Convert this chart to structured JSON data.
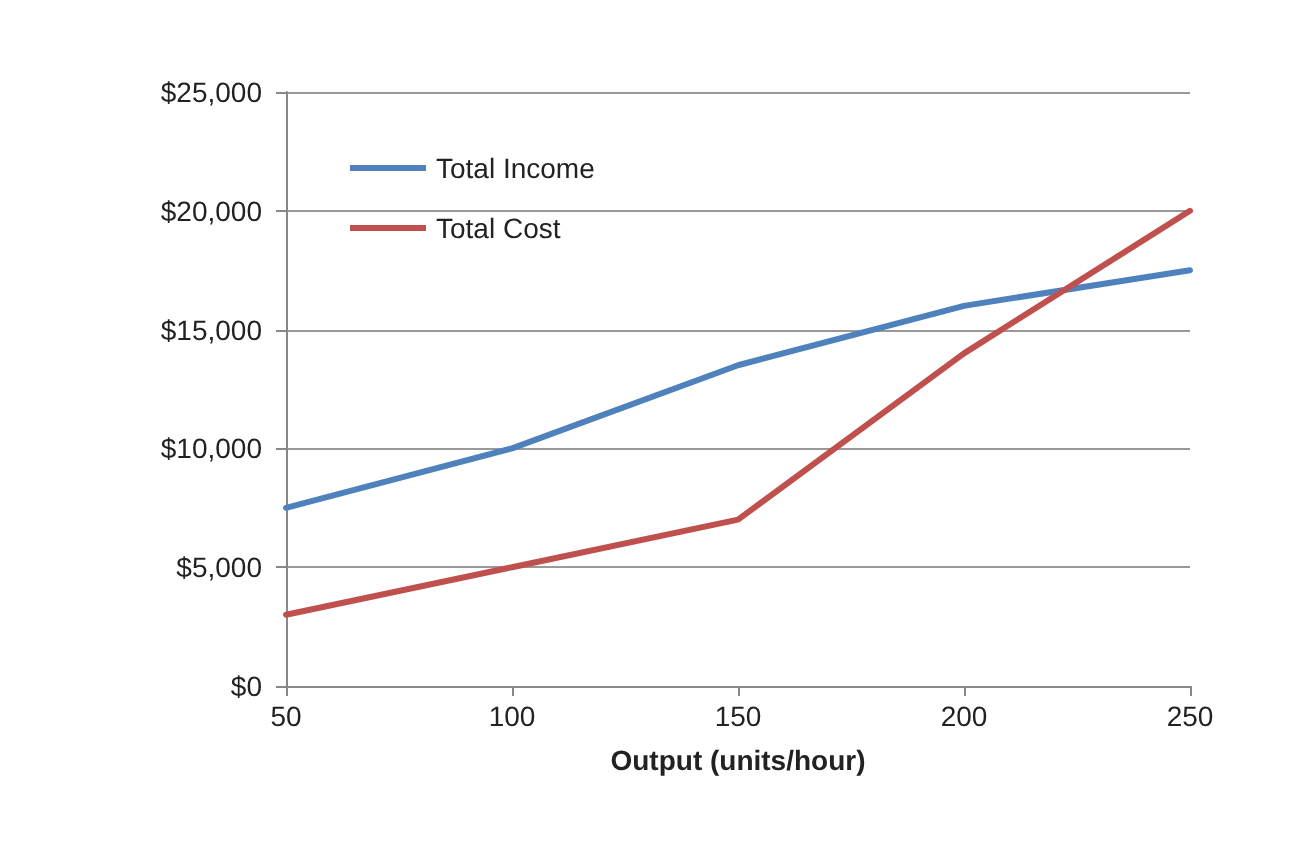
{
  "chart_data": {
    "type": "line",
    "xlabel": "Output (units/hour)",
    "x": [
      50,
      100,
      150,
      200,
      250
    ],
    "series": [
      {
        "name": "Total Income",
        "color": "#4f81bd",
        "values": [
          7500,
          10000,
          13500,
          16000,
          17500
        ]
      },
      {
        "name": "Total Cost",
        "color": "#c0504d",
        "values": [
          3000,
          5000,
          7000,
          14000,
          20000
        ]
      }
    ],
    "xlim": [
      50,
      250
    ],
    "xticks": [
      50,
      100,
      150,
      200,
      250
    ],
    "ylim": [
      0,
      25000
    ],
    "yticks": [
      {
        "value": 0,
        "label": "$0"
      },
      {
        "value": 5000,
        "label": "$5,000"
      },
      {
        "value": 10000,
        "label": "$10,000"
      },
      {
        "value": 15000,
        "label": "$15,000"
      },
      {
        "value": 20000,
        "label": "$20,000"
      },
      {
        "value": 25000,
        "label": "$25,000"
      }
    ],
    "grid": "y",
    "legend": "top left",
    "marker": "none",
    "line_style": "solid"
  }
}
